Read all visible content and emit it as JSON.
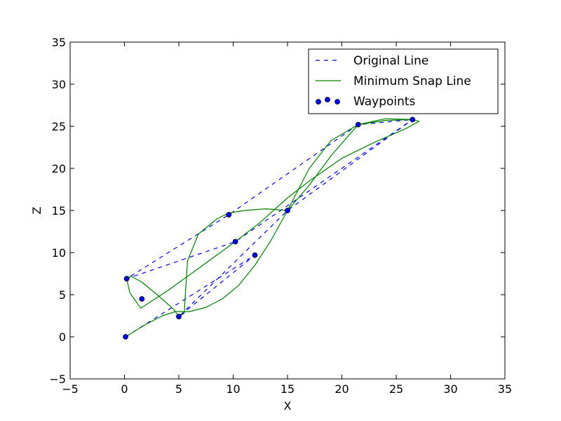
{
  "chart_data": {
    "type": "line",
    "title": "",
    "xlabel": "X",
    "ylabel": "Z",
    "xlim": [
      -5,
      35
    ],
    "ylim": [
      -5,
      35
    ],
    "xticks": [
      -5,
      0,
      5,
      10,
      15,
      20,
      25,
      30,
      35
    ],
    "yticks": [
      -5,
      0,
      5,
      10,
      15,
      20,
      25,
      30,
      35
    ],
    "xtick_labels": [
      "−5",
      "0",
      "5",
      "10",
      "15",
      "20",
      "25",
      "30",
      "35"
    ],
    "ytick_labels": [
      "−5",
      "0",
      "5",
      "10",
      "15",
      "20",
      "25",
      "30",
      "35"
    ],
    "grid": false,
    "legend_position": "top-right",
    "series": [
      {
        "name": "Original Line",
        "style": "dashed",
        "color": "#0000ff",
        "x": [
          0.1,
          12.0,
          5.0,
          15.0,
          26.5,
          10.2,
          0.2,
          9.6,
          21.5,
          26.5
        ],
        "y": [
          0.0,
          9.7,
          2.4,
          15.0,
          25.8,
          11.3,
          6.9,
          14.5,
          25.2,
          25.8
        ]
      },
      {
        "name": "Minimum Snap Line",
        "style": "solid",
        "color": "#008000",
        "x": [
          0.1,
          2.0,
          3.5,
          4.7,
          6.0,
          7.5,
          9.0,
          10.5,
          12.0,
          13.5,
          15.0,
          17.0,
          19.0,
          21.5,
          24.0,
          26.5,
          27.1,
          26.0,
          23.0,
          20.0,
          17.0,
          15.0,
          12.5,
          10.2,
          7.0,
          4.0,
          1.5,
          0.5,
          0.2,
          0.6,
          1.6,
          3.0,
          4.5,
          5.0,
          5.5,
          5.6,
          5.8,
          6.8,
          8.5,
          9.6,
          11.0,
          13.0,
          15.0,
          17.0,
          19.0,
          21.5,
          24.0,
          26.5
        ],
        "y": [
          0.0,
          1.5,
          2.5,
          3.0,
          3.0,
          3.5,
          4.5,
          6.1,
          8.5,
          11.5,
          15.0,
          20.0,
          23.3,
          25.2,
          25.7,
          25.8,
          25.6,
          24.8,
          23.1,
          21.2,
          18.5,
          16.5,
          13.6,
          11.3,
          8.3,
          5.5,
          3.4,
          5.2,
          6.9,
          7.2,
          6.5,
          5.0,
          3.3,
          2.4,
          2.8,
          5.0,
          9.0,
          12.2,
          14.0,
          14.7,
          15.0,
          15.2,
          15.0,
          18.0,
          21.5,
          25.2,
          25.9,
          25.8
        ]
      },
      {
        "name": "Waypoints",
        "style": "markers",
        "color": "#0000ff",
        "x": [
          0.1,
          12.0,
          5.0,
          15.0,
          26.5,
          10.2,
          0.2,
          9.6,
          21.5,
          1.6
        ],
        "y": [
          0.0,
          9.7,
          2.4,
          15.0,
          25.8,
          11.3,
          6.9,
          14.5,
          25.2,
          4.5
        ]
      }
    ]
  }
}
